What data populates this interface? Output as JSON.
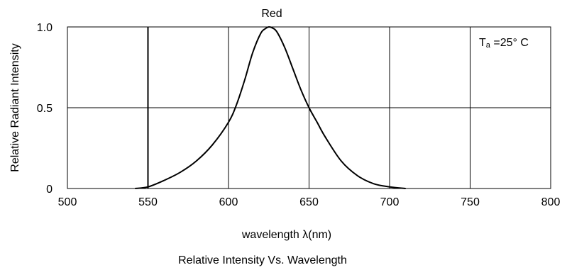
{
  "chart_data": {
    "type": "line",
    "title": "Red",
    "xlabel": "wavelength λ(nm)",
    "ylabel": "Relative Radiant Intensity",
    "caption": "Relative Intensity Vs. Wavelength",
    "annotation": {
      "base": "T",
      "sub": "a",
      "rest": " =25° C"
    },
    "xlim": [
      500,
      800
    ],
    "ylim": [
      0,
      1.0
    ],
    "xticks": [
      500,
      550,
      600,
      650,
      700,
      750,
      800
    ],
    "yticks": [
      {
        "value": 0,
        "label": "0"
      },
      {
        "value": 0.5,
        "label": "0.5"
      },
      {
        "value": 1.0,
        "label": "1.0"
      }
    ],
    "grid": true,
    "line_color": "#000000",
    "grid_color": "#000000",
    "series": [
      {
        "x": [
          542,
          550,
          560,
          570,
          580,
          590,
          600,
          605,
          610,
          615,
          620,
          623,
          625,
          627,
          630,
          635,
          640,
          645,
          650,
          655,
          660,
          670,
          680,
          690,
          700,
          710
        ],
        "values": [
          0.0,
          0.01,
          0.05,
          0.1,
          0.17,
          0.27,
          0.41,
          0.52,
          0.67,
          0.84,
          0.96,
          0.99,
          1.0,
          0.995,
          0.97,
          0.87,
          0.74,
          0.61,
          0.5,
          0.41,
          0.32,
          0.17,
          0.08,
          0.03,
          0.01,
          0.0
        ]
      }
    ]
  }
}
